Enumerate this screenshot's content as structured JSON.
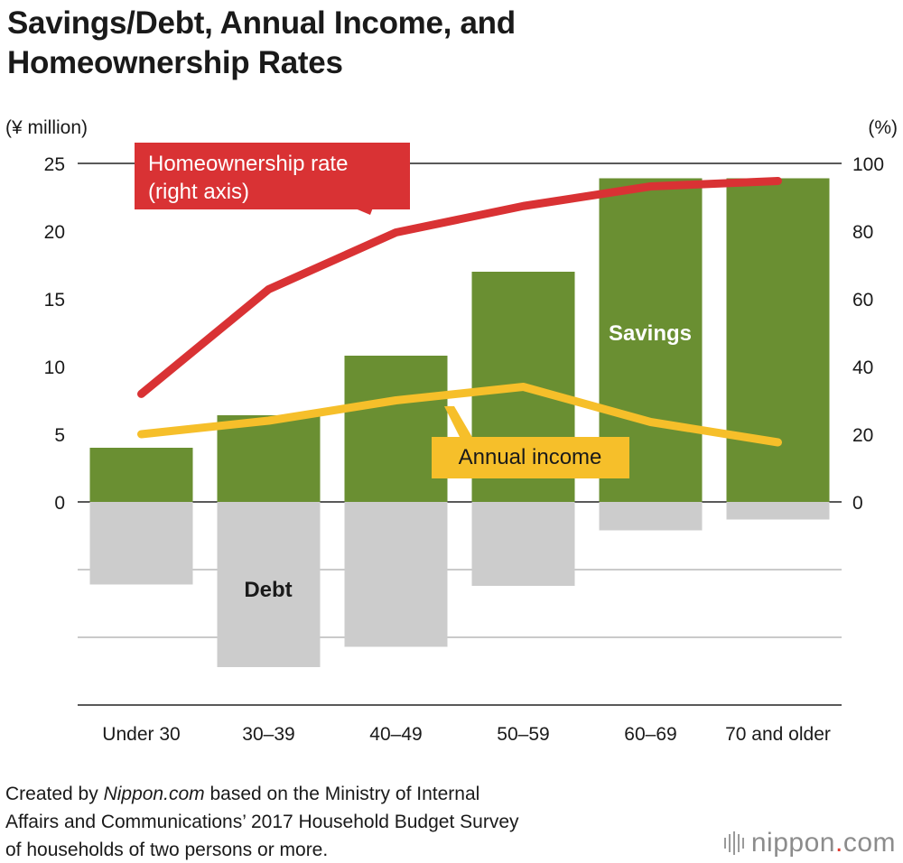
{
  "title_lines": [
    "Savings/Debt, Annual Income, and",
    "Homeownership Rates"
  ],
  "footer": {
    "line1_prefix": "Created by ",
    "line1_brand": "Nippon.com",
    "line1_suffix": " based on the Ministry of Internal",
    "line2": "Affairs and Communications’ 2017 Household Budget Survey",
    "line3": "of households of two persons or more."
  },
  "logo": {
    "icon": "sound-bars-icon",
    "text_main": "nippon",
    "text_dot": ".",
    "text_tld": "com"
  },
  "colors": {
    "savings": "#6a8f32",
    "debt": "#cccccc",
    "homeownership": "#d93234",
    "income": "#f6bf2a",
    "grid": "#aaaaaa",
    "axis": "#222222"
  },
  "chart_data": {
    "type": "bar",
    "title": "Savings/Debt, Annual Income, and Homeownership Rates",
    "left_unit": "(¥ million)",
    "right_unit": "(%)",
    "categories": [
      "Under 30",
      "30–39",
      "40–49",
      "50–59",
      "60–69",
      "70 and older"
    ],
    "ylim_left": [
      -15,
      25
    ],
    "yticks_left": [
      0,
      5,
      10,
      15,
      20,
      25
    ],
    "ylim_right": [
      -60,
      100
    ],
    "yticks_right": [
      0,
      20,
      40,
      60,
      80,
      100
    ],
    "gridlines_left": [
      -15,
      -10,
      -5,
      0,
      25
    ],
    "series": [
      {
        "name": "Savings",
        "kind": "bar",
        "axis": "left",
        "values": [
          4.0,
          6.4,
          10.8,
          17.0,
          23.9,
          23.9
        ]
      },
      {
        "name": "Debt",
        "kind": "bar",
        "axis": "left",
        "values": [
          -6.1,
          -12.2,
          -10.7,
          -6.2,
          -2.1,
          -1.3
        ]
      },
      {
        "name": "Homeownership rate",
        "kind": "line",
        "axis": "right",
        "values": [
          31.9,
          62.8,
          79.6,
          87.4,
          93.2,
          94.8
        ]
      },
      {
        "name": "Annual income",
        "kind": "line",
        "axis": "left",
        "values": [
          5.0,
          6.0,
          7.5,
          8.5,
          5.9,
          4.4
        ]
      }
    ],
    "labels": {
      "savings": "Savings",
      "debt": "Debt",
      "homeownership_line1": "Homeownership rate",
      "homeownership_line2": "(right axis)",
      "income": "Annual income"
    }
  }
}
